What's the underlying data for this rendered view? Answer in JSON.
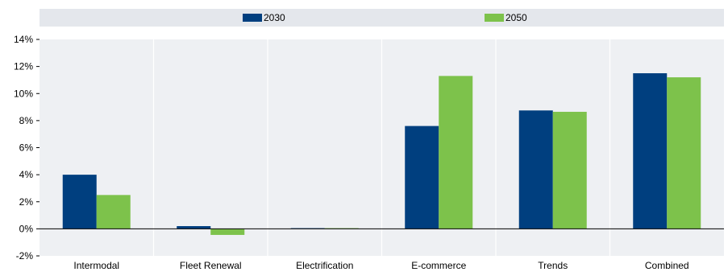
{
  "chart_data": {
    "type": "bar",
    "title": "",
    "xlabel": "",
    "ylabel": "",
    "categories": [
      "Intermodal",
      "Fleet Renewal",
      "Electrification",
      "E-commerce",
      "Trends",
      "Combined"
    ],
    "series": [
      {
        "name": "2030",
        "color": "#003f7f",
        "values": [
          4.0,
          0.2,
          0.05,
          7.6,
          8.75,
          11.5
        ]
      },
      {
        "name": "2050",
        "color": "#7dc24b",
        "values": [
          2.5,
          -0.45,
          0.05,
          11.3,
          8.65,
          11.2
        ]
      }
    ],
    "ylim": [
      -2,
      14
    ],
    "yticks": [
      -2,
      0,
      2,
      4,
      6,
      8,
      10,
      12,
      14
    ],
    "ytick_labels": [
      "-2%",
      "0%",
      "2%",
      "4%",
      "6%",
      "8%",
      "10%",
      "12%",
      "14%"
    ],
    "legend": {
      "position": "top",
      "entries": [
        "2030",
        "2050"
      ]
    },
    "grid": {
      "vertical_separators": true,
      "horizontal": false
    },
    "background": "#eef0f3",
    "legend_background": "#e4e7ec"
  }
}
